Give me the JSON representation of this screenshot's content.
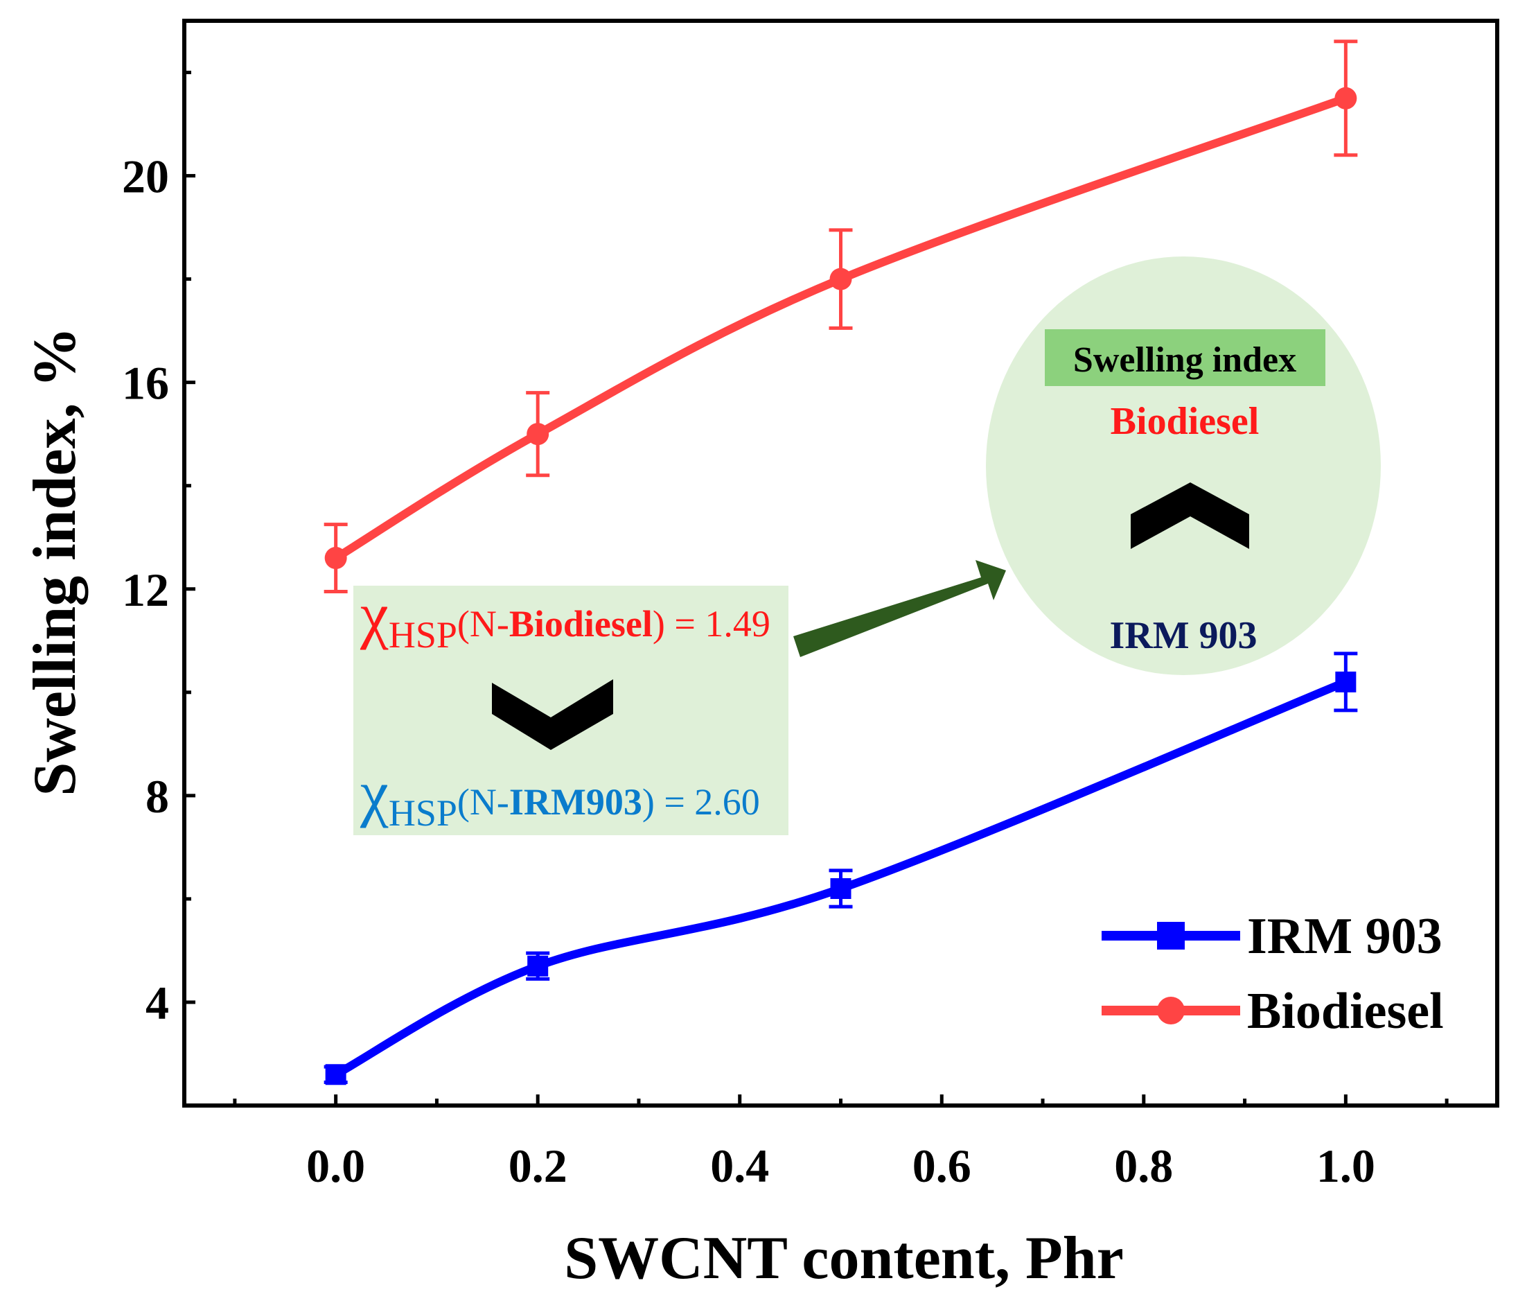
{
  "chart_data": {
    "type": "line",
    "title": "",
    "xlabel": "SWCNT content, Phr",
    "ylabel": "Swelling index, %",
    "xlim": [
      -0.15,
      1.15
    ],
    "ylim": [
      2.0,
      23.0
    ],
    "xticks": [
      "0.0",
      "0.2",
      "0.4",
      "0.6",
      "0.8",
      "1.0"
    ],
    "yticks": [
      "4",
      "8",
      "12",
      "16",
      "20"
    ],
    "grid": false,
    "legend_position": "bottom-right",
    "series": [
      {
        "name": "IRM 903",
        "color": "#0000ff",
        "marker": "square",
        "x": [
          0.0,
          0.2,
          0.5,
          1.0
        ],
        "y": [
          2.6,
          4.7,
          6.2,
          10.2
        ],
        "err": [
          0.15,
          0.25,
          0.35,
          0.55
        ]
      },
      {
        "name": "Biodiesel",
        "color": "#ff4444",
        "marker": "circle",
        "x": [
          0.0,
          0.2,
          0.5,
          1.0
        ],
        "y": [
          12.6,
          15.0,
          18.0,
          21.5
        ],
        "err": [
          0.65,
          0.8,
          0.95,
          1.1
        ]
      }
    ],
    "annotations": {
      "box_left": {
        "chi": "χ",
        "sub": "HSP",
        "line1_prefix": "(N-",
        "line1_bold": "Biodiesel",
        "line1_suffix": ") = 1.49",
        "line2_prefix": "(N-",
        "line2_bold": "IRM903",
        "line2_suffix": ") = 2.60",
        "line1_color": "#ff1a1a",
        "line2_color": "#0a7ccc"
      },
      "circle": {
        "header": "Swelling index",
        "top_label": "Biodiesel",
        "bottom_label": "IRM 903",
        "top_color": "#ff1a1a",
        "bottom_color": "#0b1a5c"
      },
      "arrow_color": "#2e5a1e",
      "box_fill": "#dff0d8",
      "header_fill": "#8cd17d"
    }
  }
}
